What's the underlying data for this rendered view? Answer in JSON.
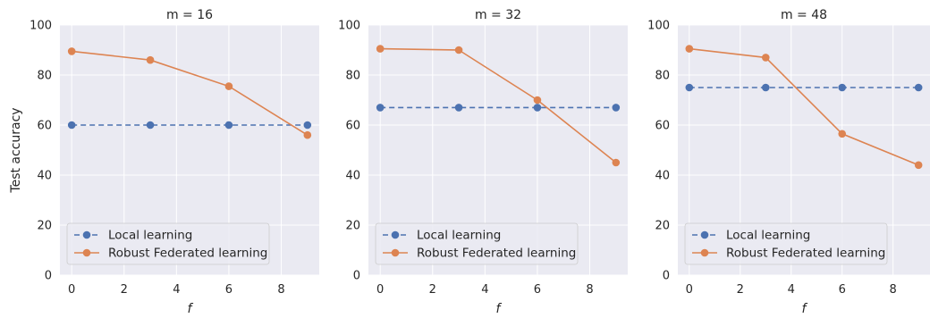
{
  "chart_data": [
    {
      "type": "line",
      "title": "m = 16",
      "xlabel": "f",
      "ylabel": "Test accuracy",
      "xticks": [
        0,
        2,
        4,
        6,
        8
      ],
      "yticks": [
        0,
        20,
        40,
        60,
        80,
        100
      ],
      "xlim": [
        -0.45,
        9.45
      ],
      "ylim": [
        0,
        100
      ],
      "grid": true,
      "legend_position": "lower-left",
      "series": [
        {
          "name": "Local learning",
          "style": "dashed",
          "color": "#4c72b0",
          "x": [
            0,
            3,
            6,
            9
          ],
          "values": [
            60,
            60,
            60,
            60
          ]
        },
        {
          "name": "Robust Federated learning",
          "style": "solid",
          "color": "#dd8452",
          "x": [
            0,
            3,
            6,
            9
          ],
          "values": [
            89.5,
            86,
            75.5,
            56
          ]
        }
      ]
    },
    {
      "type": "line",
      "title": "m = 32",
      "xlabel": "f",
      "ylabel": "",
      "xticks": [
        0,
        2,
        4,
        6,
        8
      ],
      "yticks": [
        0,
        20,
        40,
        60,
        80,
        100
      ],
      "xlim": [
        -0.45,
        9.45
      ],
      "ylim": [
        0,
        100
      ],
      "grid": true,
      "legend_position": "lower-left",
      "series": [
        {
          "name": "Local learning",
          "style": "dashed",
          "color": "#4c72b0",
          "x": [
            0,
            3,
            6,
            9
          ],
          "values": [
            67,
            67,
            67,
            67
          ]
        },
        {
          "name": "Robust Federated learning",
          "style": "solid",
          "color": "#dd8452",
          "x": [
            0,
            3,
            6,
            9
          ],
          "values": [
            90.5,
            90,
            70,
            45
          ]
        }
      ]
    },
    {
      "type": "line",
      "title": "m = 48",
      "xlabel": "f",
      "ylabel": "",
      "xticks": [
        0,
        2,
        4,
        6,
        8
      ],
      "yticks": [
        0,
        20,
        40,
        60,
        80,
        100
      ],
      "xlim": [
        -0.45,
        9.45
      ],
      "ylim": [
        0,
        100
      ],
      "grid": true,
      "legend_position": "lower-left",
      "series": [
        {
          "name": "Local learning",
          "style": "dashed",
          "color": "#4c72b0",
          "x": [
            0,
            3,
            6,
            9
          ],
          "values": [
            75,
            75,
            75,
            75
          ]
        },
        {
          "name": "Robust Federated learning",
          "style": "solid",
          "color": "#dd8452",
          "x": [
            0,
            3,
            6,
            9
          ],
          "values": [
            90.5,
            87,
            56.5,
            44
          ]
        }
      ]
    }
  ],
  "colors": {
    "plot_background": "#eaeaf2",
    "grid": "#ffffff",
    "text": "#262626"
  }
}
